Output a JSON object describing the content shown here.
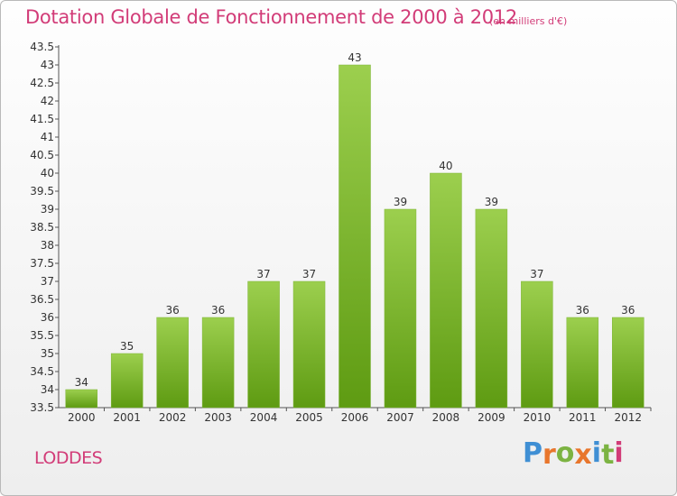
{
  "header": {
    "title": "Dotation Globale de Fonctionnement de 2000 à 2012",
    "subtitle": "(en milliers d'€)"
  },
  "footer": {
    "commune": "LODDES",
    "logo_letters": [
      "P",
      "r",
      "o",
      "x",
      "i",
      "t",
      "i"
    ],
    "logo_colors": [
      "#3f8fd4",
      "#e8762c",
      "#7cb342",
      "#e8762c",
      "#3f8fd4",
      "#7cb342",
      "#d23c78"
    ]
  },
  "chart_data": {
    "type": "bar",
    "title": "Dotation Globale de Fonctionnement de 2000 à 2012",
    "subtitle": "(en milliers d'€)",
    "categories": [
      "2000",
      "2001",
      "2002",
      "2003",
      "2004",
      "2005",
      "2006",
      "2007",
      "2008",
      "2009",
      "2010",
      "2011",
      "2012"
    ],
    "values": [
      34,
      35,
      36,
      36,
      37,
      37,
      43,
      39,
      40,
      39,
      37,
      36,
      36
    ],
    "data_labels": [
      "34",
      "35",
      "36",
      "36",
      "37",
      "37",
      "43",
      "39",
      "40",
      "39",
      "37",
      "36",
      "36"
    ],
    "yticks": [
      "33.5",
      "34",
      "34.5",
      "35",
      "35.5",
      "36",
      "36.5",
      "37",
      "37.5",
      "38",
      "38.5",
      "39",
      "39.5",
      "40",
      "40.5",
      "41",
      "41.5",
      "42",
      "42.5",
      "43",
      "43.5"
    ],
    "ylim": [
      33.5,
      43.5
    ],
    "xlabel": "",
    "ylabel": "",
    "grid": false,
    "legend": "none",
    "bar_color_top": "#9ccf4e",
    "bar_color_bottom": "#5e9b12"
  }
}
